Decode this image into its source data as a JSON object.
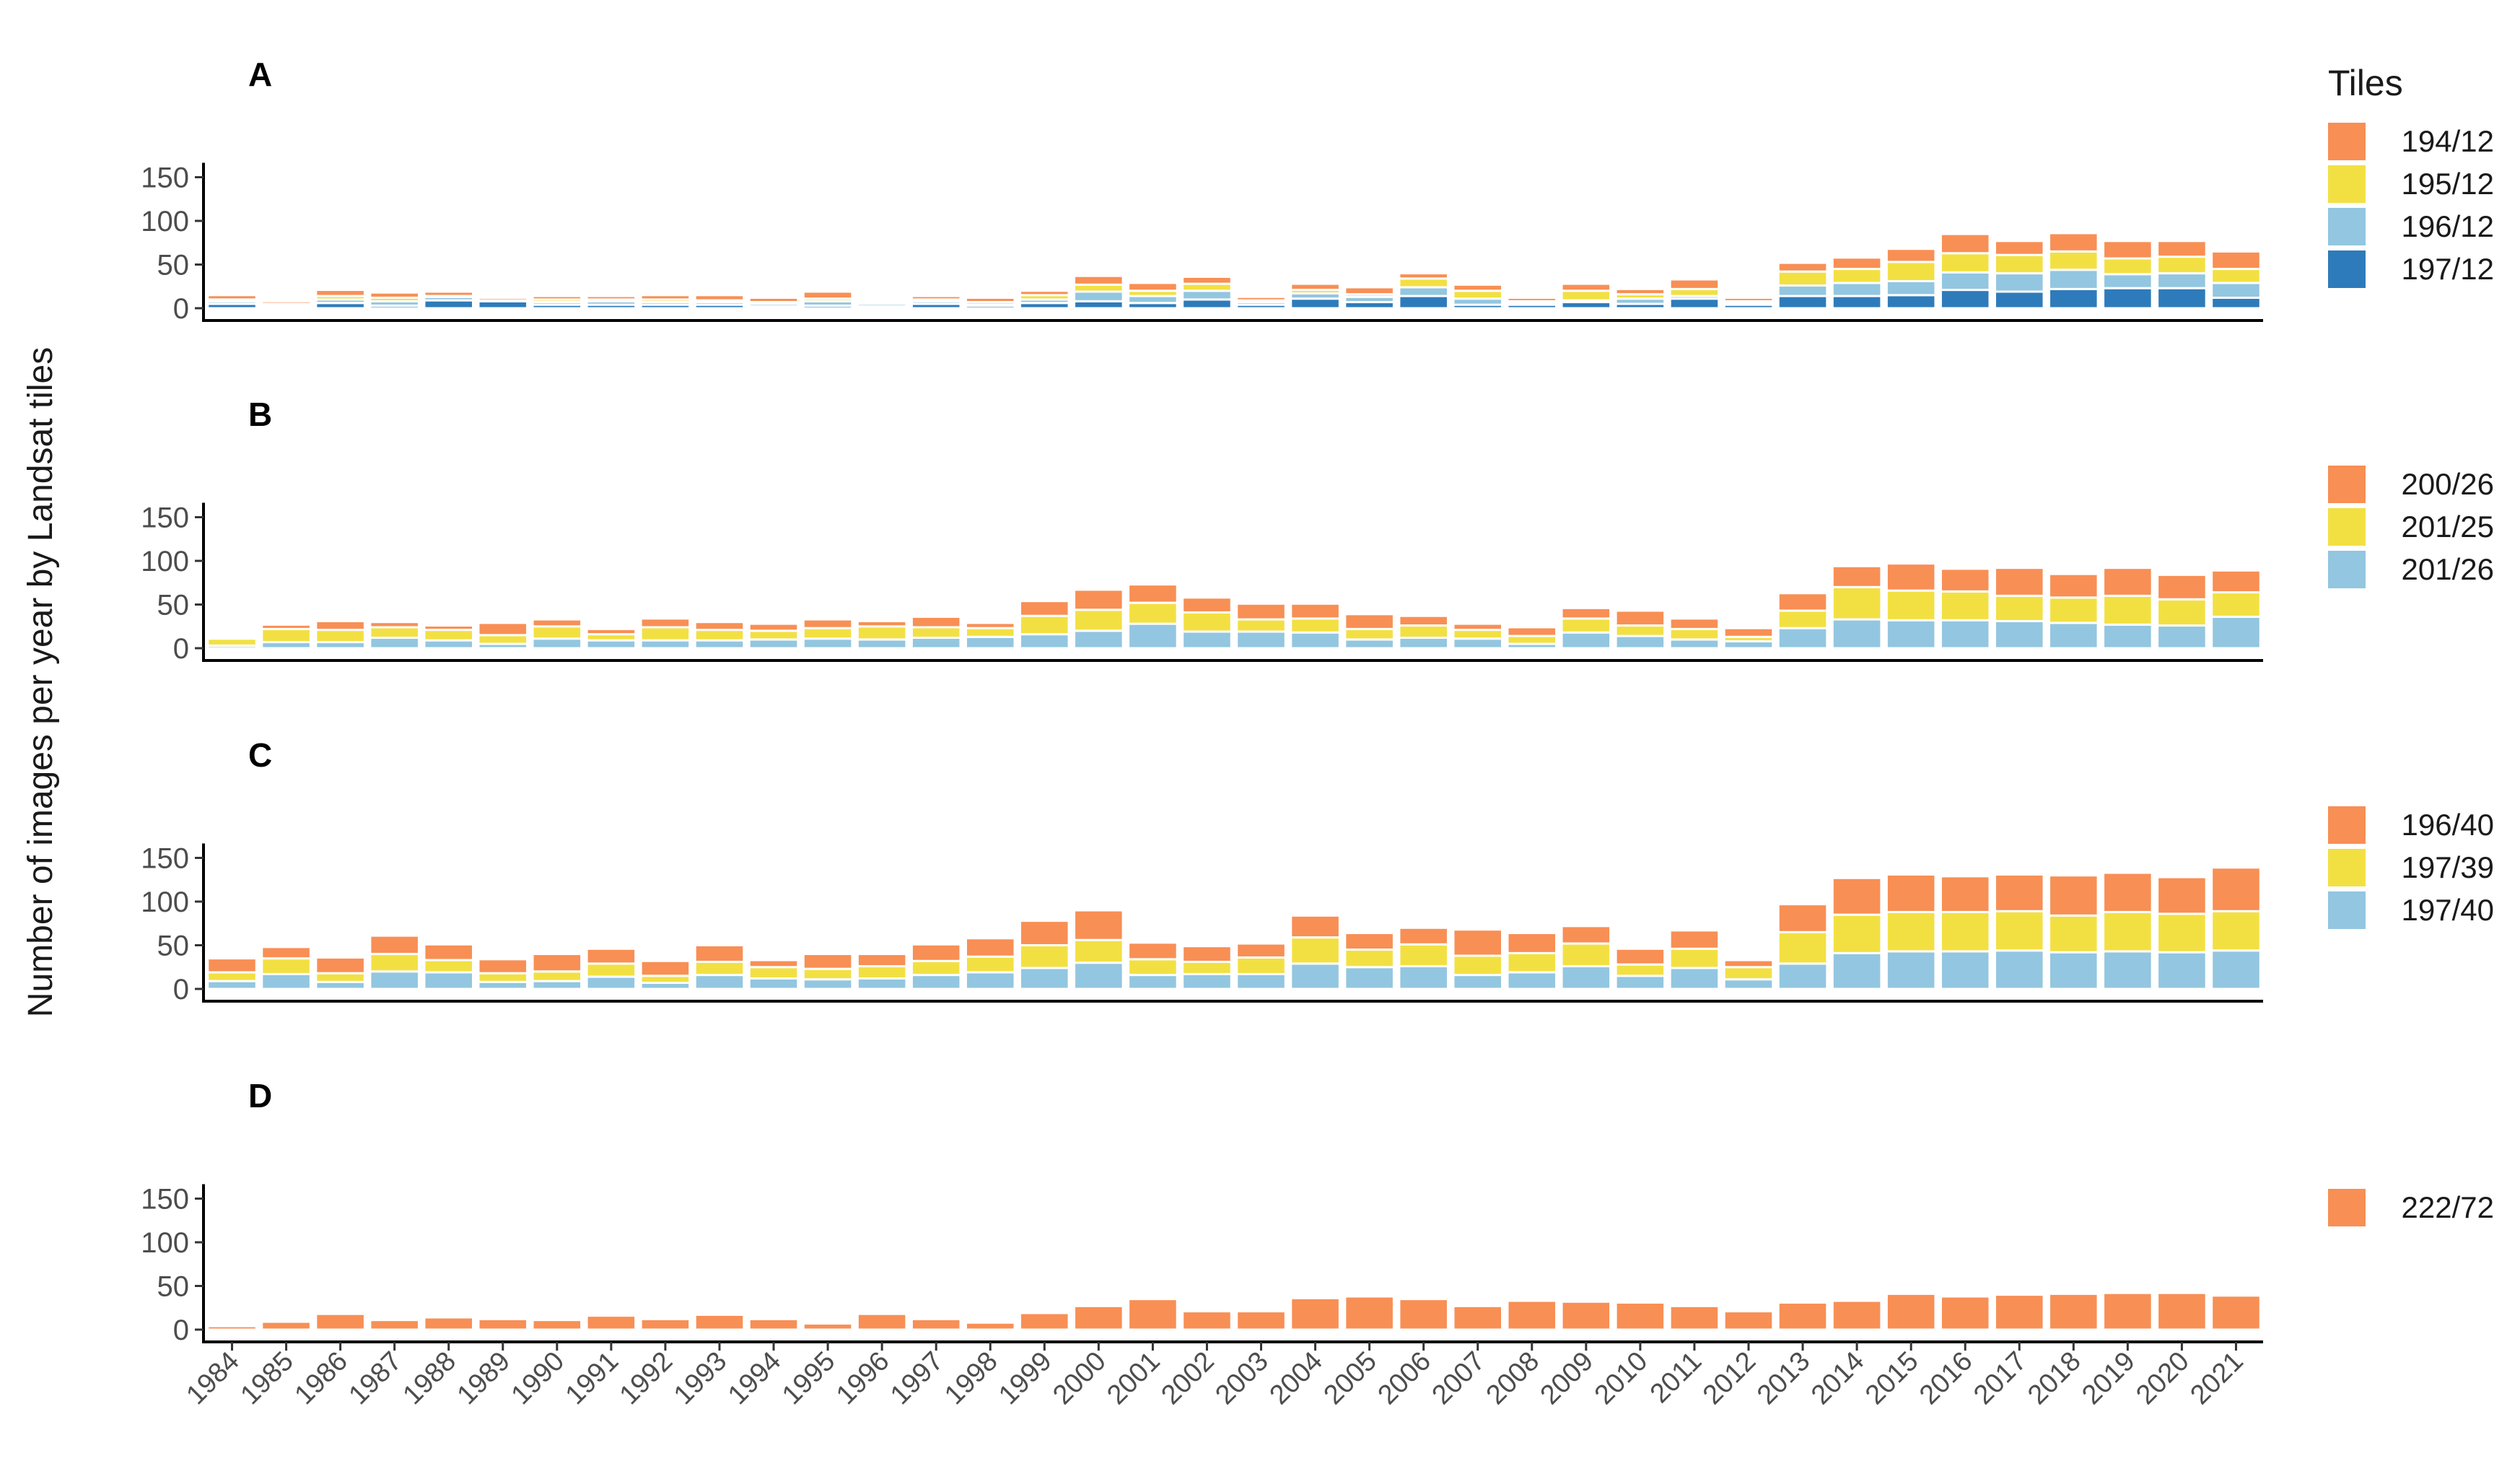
{
  "chart_data": {
    "type": "bar",
    "stacked": true,
    "ylabel": "Number of images per year by Landsat tiles",
    "xlabel": "",
    "legend_title": "Tiles",
    "legend_position": "right",
    "ylim": [
      0,
      150
    ],
    "yticks": [
      0,
      50,
      100,
      150
    ],
    "categories": [
      "1984",
      "1985",
      "1986",
      "1987",
      "1988",
      "1989",
      "1990",
      "1991",
      "1992",
      "1993",
      "1994",
      "1995",
      "1996",
      "1997",
      "1998",
      "1999",
      "2000",
      "2001",
      "2002",
      "2003",
      "2004",
      "2005",
      "2006",
      "2007",
      "2008",
      "2009",
      "2010",
      "2011",
      "2012",
      "2013",
      "2014",
      "2015",
      "2016",
      "2017",
      "2018",
      "2019",
      "2020",
      "2021"
    ],
    "panels": [
      {
        "label": "A",
        "series": [
          {
            "name": "197/12",
            "color": "#2e7bbb",
            "values": [
              5,
              2,
              6,
              3,
              9,
              8,
              4,
              4,
              4,
              4,
              2,
              3,
              2,
              5,
              3,
              6,
              8,
              6,
              10,
              4,
              11,
              7,
              14,
              4,
              4,
              7,
              5,
              11,
              4,
              14,
              14,
              15,
              21,
              19,
              22,
              23,
              23,
              12
            ]
          },
          {
            "name": "196/12",
            "color": "#93c6e0",
            "values": [
              3,
              2,
              4,
              5,
              4,
              1,
              3,
              4,
              3,
              3,
              3,
              5,
              3,
              3,
              1,
              4,
              11,
              8,
              10,
              3,
              6,
              6,
              10,
              7,
              2,
              2,
              6,
              3,
              2,
              12,
              15,
              16,
              20,
              21,
              22,
              16,
              17,
              17
            ]
          },
          {
            "name": "195/12",
            "color": "#f2e043",
            "values": [
              2,
              1,
              4,
              4,
              1,
              0,
              3,
              2,
              3,
              2,
              2,
              3,
              1,
              2,
              3,
              5,
              8,
              6,
              8,
              2,
              4,
              3,
              10,
              9,
              2,
              11,
              5,
              8,
              2,
              16,
              16,
              22,
              22,
              21,
              21,
              18,
              19,
              16
            ]
          },
          {
            "name": "194/12",
            "color": "#f88f55",
            "values": [
              5,
              3,
              7,
              6,
              5,
              3,
              4,
              4,
              5,
              6,
              5,
              8,
              1,
              4,
              5,
              5,
              10,
              9,
              8,
              4,
              7,
              8,
              6,
              7,
              4,
              8,
              6,
              11,
              4,
              10,
              13,
              15,
              22,
              16,
              21,
              20,
              18,
              20
            ]
          }
        ]
      },
      {
        "label": "B",
        "series": [
          {
            "name": "201/26",
            "color": "#93c6e0",
            "values": [
              3,
              7,
              7,
              12,
              9,
              5,
              11,
              9,
              9,
              9,
              10,
              11,
              10,
              12,
              13,
              16,
              20,
              28,
              19,
              19,
              18,
              10,
              12,
              11,
              5,
              18,
              14,
              10,
              8,
              23,
              33,
              32,
              32,
              31,
              29,
              27,
              26,
              36
            ]
          },
          {
            "name": "201/25",
            "color": "#f2e043",
            "values": [
              8,
              15,
              14,
              12,
              12,
              10,
              14,
              7,
              15,
              12,
              10,
              12,
              15,
              12,
              10,
              21,
              24,
              24,
              22,
              14,
              16,
              12,
              14,
              10,
              9,
              16,
              12,
              12,
              5,
              20,
              37,
              34,
              33,
              29,
              29,
              33,
              30,
              28
            ]
          },
          {
            "name": "200/26",
            "color": "#f88f55",
            "values": [
              2,
              5,
              10,
              6,
              5,
              14,
              8,
              6,
              10,
              9,
              8,
              10,
              6,
              12,
              6,
              17,
              23,
              21,
              17,
              18,
              17,
              17,
              11,
              7,
              10,
              12,
              17,
              12,
              10,
              20,
              24,
              31,
              26,
              32,
              27,
              32,
              28,
              25
            ]
          }
        ]
      },
      {
        "label": "C",
        "series": [
          {
            "name": "197/40",
            "color": "#93c6e0",
            "values": [
              9,
              17,
              8,
              20,
              19,
              8,
              9,
              14,
              7,
              16,
              12,
              11,
              12,
              16,
              19,
              24,
              30,
              16,
              17,
              17,
              29,
              25,
              26,
              16,
              19,
              26,
              15,
              24,
              11,
              29,
              41,
              43,
              43,
              44,
              42,
              43,
              42,
              44
            ]
          },
          {
            "name": "197/39",
            "color": "#f2e043",
            "values": [
              10,
              18,
              10,
              20,
              14,
              10,
              11,
              15,
              8,
              15,
              13,
              12,
              14,
              16,
              18,
              26,
              26,
              18,
              14,
              19,
              30,
              20,
              25,
              22,
              22,
              26,
              13,
              22,
              14,
              36,
              44,
              45,
              45,
              45,
              42,
              45,
              44,
              45
            ]
          },
          {
            "name": "196/40",
            "color": "#f88f55",
            "values": [
              16,
              13,
              18,
              21,
              18,
              16,
              20,
              17,
              17,
              19,
              8,
              17,
              14,
              19,
              21,
              28,
              34,
              19,
              18,
              16,
              25,
              19,
              19,
              30,
              23,
              20,
              18,
              21,
              8,
              32,
              42,
              43,
              41,
              42,
              46,
              45,
              42,
              50
            ]
          }
        ]
      },
      {
        "label": "D",
        "series": [
          {
            "name": "222/72",
            "color": "#f88f55",
            "values": [
              4,
              9,
              18,
              11,
              14,
              12,
              11,
              16,
              12,
              17,
              12,
              7,
              18,
              12,
              8,
              19,
              27,
              35,
              21,
              21,
              36,
              38,
              35,
              27,
              33,
              32,
              31,
              27,
              21,
              31,
              33,
              41,
              38,
              40,
              41,
              42,
              42,
              39
            ]
          }
        ]
      }
    ]
  }
}
